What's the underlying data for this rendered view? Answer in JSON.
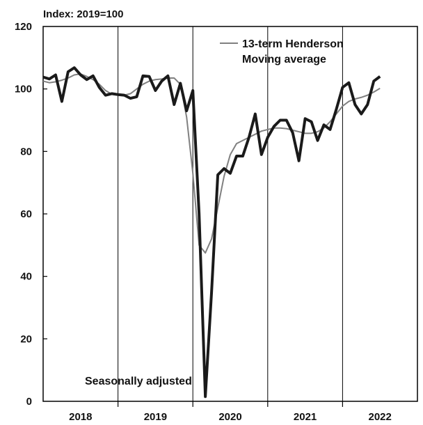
{
  "chart_data": {
    "type": "line",
    "ylabel": "Index:  2019=100",
    "ylim": [
      0,
      120
    ],
    "yticks": [
      "0",
      "20",
      "40",
      "60",
      "80",
      "100",
      "120"
    ],
    "xlim": [
      2017.5,
      2022.5
    ],
    "year_labels": [
      "2018",
      "2019",
      "2020",
      "2021",
      "2022"
    ],
    "annotation": "Seasonally adjusted",
    "legend": {
      "lines": [
        "13-term Henderson",
        "Moving average"
      ],
      "position": "top-right"
    },
    "grid": "vertical year separators",
    "colors": {
      "actual": "#1a1a1a",
      "trend": "#808080",
      "frame": "#000000"
    },
    "start": "2017-07",
    "frequency": "monthly",
    "series": [
      {
        "style": "thick-black",
        "values": [
          103.8,
          103.2,
          104.5,
          96.0,
          105.5,
          106.8,
          104.5,
          103.0,
          104.2,
          100.5,
          98.0,
          98.5,
          98.2,
          98.0,
          97.0,
          97.5,
          104.2,
          104.0,
          99.5,
          102.5,
          104.2,
          95.0,
          101.8,
          93.0,
          99.5,
          60.0,
          1.5,
          35.0,
          72.5,
          74.5,
          73.0,
          78.5,
          78.5,
          84.5,
          92.0,
          79.0,
          84.5,
          88.0,
          90.0,
          90.0,
          86.0,
          77.0,
          90.5,
          89.5,
          83.5,
          88.5,
          87.0,
          93.5,
          100.5,
          102.0,
          95.0,
          92.0,
          95.0,
          102.5,
          104.0
        ]
      },
      {
        "style": "thin-grey",
        "values": [
          102.5,
          102.0,
          102.3,
          102.8,
          103.5,
          104.5,
          104.8,
          104.0,
          103.0,
          101.5,
          99.5,
          98.3,
          98.0,
          98.0,
          98.5,
          100.0,
          101.5,
          102.5,
          103.0,
          103.2,
          103.5,
          103.5,
          101.5,
          91.0,
          73.0,
          50.0,
          47.5,
          52.0,
          62.0,
          72.0,
          79.0,
          82.5,
          83.5,
          84.5,
          85.5,
          86.5,
          87.0,
          87.5,
          87.5,
          87.3,
          86.8,
          86.3,
          85.8,
          85.8,
          86.3,
          87.5,
          89.5,
          92.0,
          94.5,
          96.0,
          96.8,
          97.3,
          98.0,
          99.0,
          100.2
        ]
      }
    ]
  }
}
